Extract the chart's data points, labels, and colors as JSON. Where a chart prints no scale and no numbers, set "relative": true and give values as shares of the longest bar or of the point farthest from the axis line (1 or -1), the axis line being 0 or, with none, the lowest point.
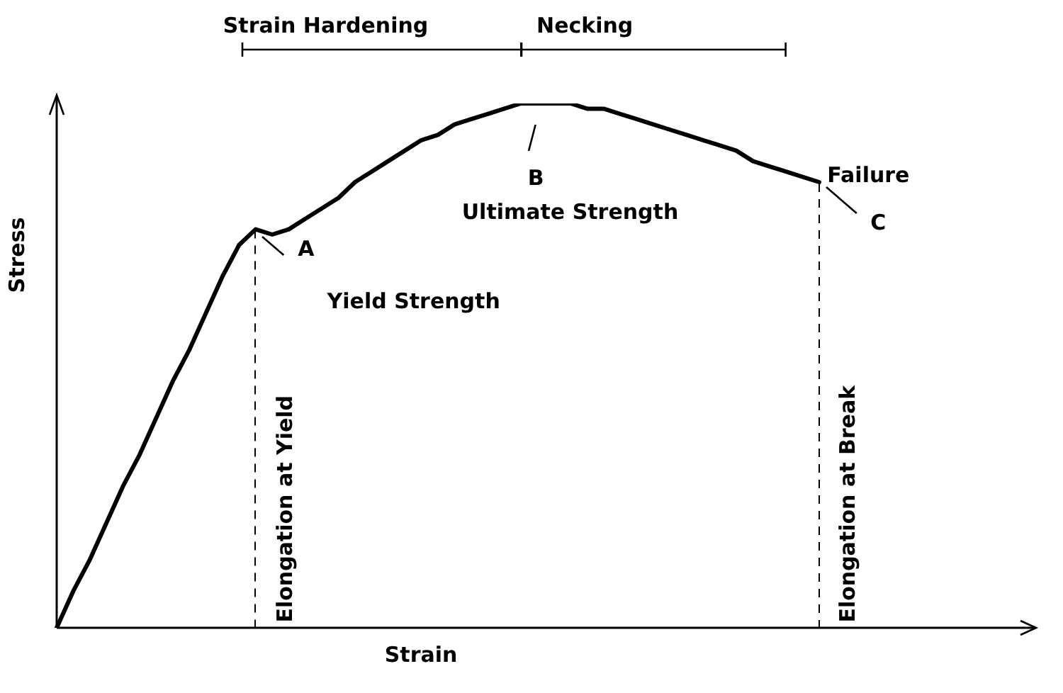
{
  "chart_data": {
    "type": "line",
    "relative": true,
    "xlabel": "Strain",
    "ylabel": "Stress",
    "categories": [
      null,
      null,
      null,
      null,
      null,
      null,
      null,
      null,
      null,
      null,
      null,
      null,
      null,
      null,
      null,
      null,
      null,
      null,
      null,
      null,
      null,
      null,
      null,
      null,
      null,
      null,
      null,
      null,
      null,
      null,
      null,
      null,
      null,
      null,
      null,
      null,
      null,
      null,
      null,
      null,
      null,
      null,
      null,
      null,
      null,
      null,
      null,
      null,
      null,
      null,
      null,
      null,
      null,
      null,
      null,
      null,
      null,
      null,
      null,
      null
    ],
    "series": [
      {
        "color": "#000000",
        "values": [
          0,
          0.07,
          0.13,
          0.2,
          0.27,
          0.33,
          0.4,
          0.47,
          0.53,
          0.6,
          0.67,
          0.73,
          0.76,
          0.75,
          0.76,
          0.78,
          0.8,
          0.82,
          0.85,
          0.87,
          0.89,
          0.91,
          0.93,
          0.94,
          0.96,
          0.97,
          0.98,
          0.99,
          1,
          1,
          1,
          1,
          0.99,
          0.99,
          0.98,
          0.97,
          0.96,
          0.95,
          0.94,
          0.93,
          0.92,
          0.91,
          0.89,
          0.88,
          0.87,
          0.86,
          0.85,
          null,
          null,
          null,
          null,
          null,
          null,
          null,
          null,
          null,
          null,
          null,
          null,
          null
        ]
      }
    ],
    "marker": "none",
    "annotations": [
      "Strain Hardening",
      "Necking",
      "A",
      "Yield Strength",
      "B",
      "Ultimate Strength",
      "Failure",
      "C",
      "Elongation at Yield",
      "Elongation at Break"
    ]
  }
}
